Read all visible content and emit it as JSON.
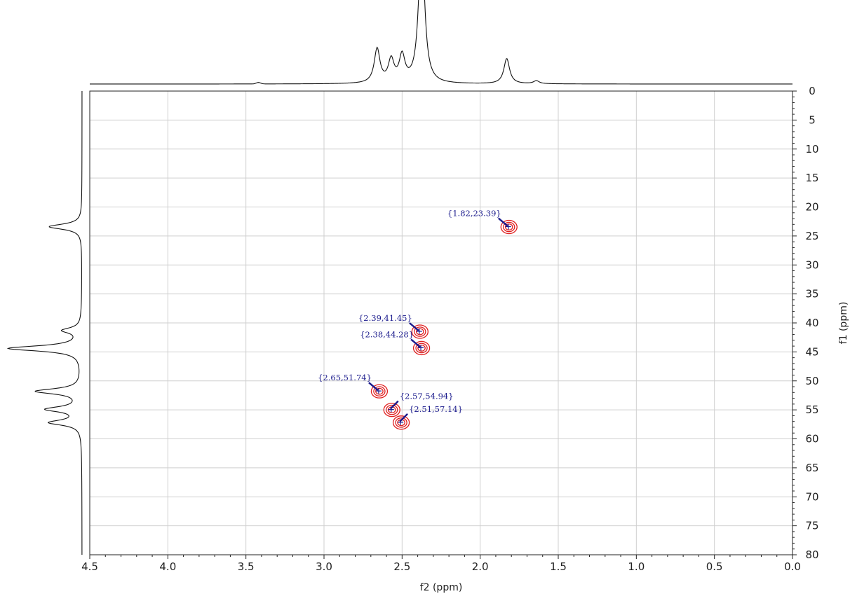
{
  "chart_data": {
    "type": "scatter",
    "title": "",
    "xlabel": "f2 (ppm)",
    "ylabel": "f1 (ppm)",
    "xlim": [
      4.5,
      0.0
    ],
    "ylim": [
      0,
      80
    ],
    "x_ticks": [
      "4.5",
      "4.0",
      "3.5",
      "3.0",
      "2.5",
      "2.0",
      "1.5",
      "1.0",
      "0.5",
      "0.0"
    ],
    "y_ticks": [
      "0",
      "5",
      "10",
      "15",
      "20",
      "25",
      "30",
      "35",
      "40",
      "45",
      "50",
      "55",
      "60",
      "65",
      "70",
      "75",
      "80"
    ],
    "grid": true,
    "contour_color": "#e02020",
    "label_color": "#1a1a8c",
    "peaks": [
      {
        "x": 1.82,
        "y": 23.39,
        "label": "{1.82,23.39}"
      },
      {
        "x": 2.39,
        "y": 41.45,
        "label": "{2.39,41.45}"
      },
      {
        "x": 2.38,
        "y": 44.28,
        "label": "{2.38,44.28}"
      },
      {
        "x": 2.65,
        "y": 51.74,
        "label": "{2.65,51.74}"
      },
      {
        "x": 2.57,
        "y": 54.94,
        "label": "{2.57,54.94}"
      },
      {
        "x": 2.51,
        "y": 57.14,
        "label": "{2.51,57.14}"
      }
    ],
    "top_projection": [
      {
        "ppm": 2.66,
        "height": 0.46
      },
      {
        "ppm": 2.57,
        "height": 0.3
      },
      {
        "ppm": 2.5,
        "height": 0.35
      },
      {
        "ppm": 2.38,
        "height": 1.0
      },
      {
        "ppm": 2.37,
        "height": 0.97
      },
      {
        "ppm": 1.83,
        "height": 0.34
      },
      {
        "ppm": 1.64,
        "height": 0.04
      }
    ],
    "left_projection": [
      {
        "ppm": 23.4,
        "height": 0.45
      },
      {
        "ppm": 41.3,
        "height": 0.25
      },
      {
        "ppm": 44.4,
        "height": 1.0
      },
      {
        "ppm": 51.8,
        "height": 0.62
      },
      {
        "ppm": 54.9,
        "height": 0.47
      },
      {
        "ppm": 57.2,
        "height": 0.43
      }
    ]
  }
}
